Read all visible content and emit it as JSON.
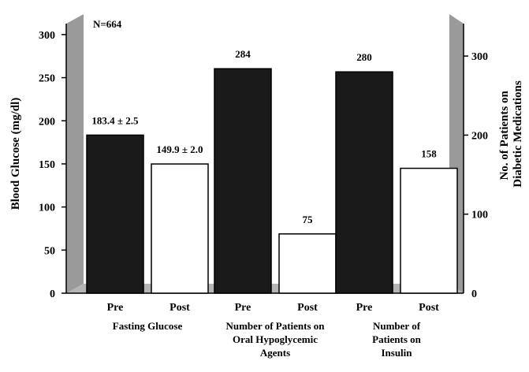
{
  "chart_data": {
    "type": "bar",
    "annotation": "N=664",
    "ylabel_left": "Blood Glucose (mg/dl)",
    "ylabel_right": [
      "No. of Patients on",
      "Diabetic Medications"
    ],
    "left_axis": {
      "ylim": [
        0,
        320
      ],
      "ticks": [
        "0",
        "50",
        "100",
        "150",
        "200",
        "250",
        "300"
      ]
    },
    "right_axis": {
      "ylim": [
        0,
        349
      ],
      "ticks": [
        "100",
        "200",
        "300"
      ],
      "zero_label": "0"
    },
    "groups": [
      {
        "label_lines": [
          "Fasting Glucose"
        ],
        "axis": "left",
        "bars": [
          {
            "category": "Pre",
            "value": 183.4,
            "label": "183.4 ± 2.5",
            "fill": "#1a1a1a"
          },
          {
            "category": "Post",
            "value": 149.9,
            "label": "149.9 ± 2.0",
            "fill": "#ffffff"
          }
        ]
      },
      {
        "label_lines": [
          "Number of Patients on",
          "Oral Hypoglycemic",
          "Agents"
        ],
        "axis": "right",
        "bars": [
          {
            "category": "Pre",
            "value": 284,
            "label": "284",
            "fill": "#1a1a1a"
          },
          {
            "category": "Post",
            "value": 75,
            "label": "75",
            "fill": "#ffffff"
          }
        ]
      },
      {
        "label_lines": [
          "Number of",
          "Patients on",
          "Insulin"
        ],
        "axis": "right",
        "bars": [
          {
            "category": "Pre",
            "value": 280,
            "label": "280",
            "fill": "#1a1a1a"
          },
          {
            "category": "Post",
            "value": 158,
            "label": "158",
            "fill": "#ffffff"
          }
        ]
      }
    ],
    "colors": {
      "pre": "#1a1a1a",
      "post": "#ffffff",
      "wall": "#9a9a9a",
      "floor": "#b5b5b5"
    }
  }
}
